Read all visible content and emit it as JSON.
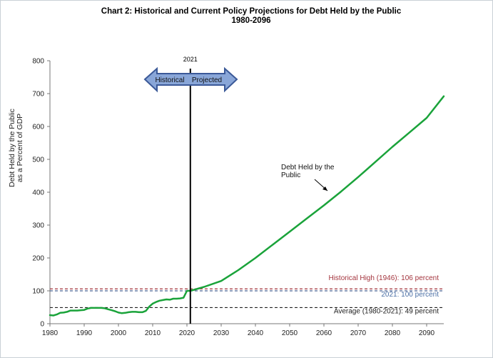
{
  "chart_data": {
    "type": "line",
    "title": "Chart 2:  Historical and Current Policy Projections for Debt Held by the Public",
    "subtitle": "1980-2096",
    "ylabel_line1": "Debt Held by the Public",
    "ylabel_line2": "as a Percent of GDP",
    "xlim": [
      1980,
      2095
    ],
    "ylim": [
      0,
      800
    ],
    "x_ticks": [
      "1980",
      "1990",
      "2000",
      "2010",
      "2020",
      "2030",
      "2040",
      "2050",
      "2060",
      "2070",
      "2080",
      "2090"
    ],
    "y_ticks": [
      "0",
      "100",
      "200",
      "300",
      "400",
      "500",
      "600",
      "700",
      "800"
    ],
    "grid": false,
    "series": [
      {
        "name": "Debt Held by the Public",
        "color": "#1aa33a",
        "x": [
          1980,
          1981,
          1982,
          1983,
          1984,
          1985,
          1986,
          1987,
          1988,
          1989,
          1990,
          1991,
          1992,
          1993,
          1994,
          1995,
          1996,
          1997,
          1998,
          1999,
          2000,
          2001,
          2002,
          2003,
          2004,
          2005,
          2006,
          2007,
          2008,
          2009,
          2010,
          2011,
          2012,
          2013,
          2014,
          2015,
          2016,
          2017,
          2018,
          2019,
          2020,
          2021,
          2025,
          2030,
          2035,
          2040,
          2045,
          2050,
          2055,
          2060,
          2065,
          2070,
          2075,
          2080,
          2085,
          2090,
          2095
        ],
        "y": [
          26,
          25,
          28,
          33,
          34,
          36,
          40,
          40,
          40,
          41,
          42,
          46,
          48,
          48,
          48,
          48,
          47,
          44,
          41,
          38,
          34,
          32,
          33,
          35,
          36,
          36,
          35,
          35,
          39,
          52,
          61,
          66,
          70,
          72,
          74,
          73,
          76,
          76,
          77,
          79,
          100,
          100,
          112,
          130,
          163,
          200,
          240,
          280,
          320,
          360,
          402,
          446,
          492,
          538,
          582,
          626,
          692
        ]
      }
    ],
    "reference_lines": [
      {
        "label": "Historical High (1946): 106 percent",
        "value": 106,
        "color": "#a3343d",
        "text_color": "#a3343d"
      },
      {
        "label": "2021: 100 percent",
        "value": 100,
        "color": "#4a5f8f",
        "text_color": "#4a6fa5"
      },
      {
        "label": "Average (1980-2021): 49 percent",
        "value": 49,
        "color": "#222222",
        "text_color": "#222222"
      }
    ],
    "divider": {
      "year": 2021,
      "label": "2021"
    },
    "arrow_labels": {
      "left": "Historical",
      "right": "Projected",
      "fill": "#89a6d8",
      "stroke": "#3b5998"
    },
    "annotation": {
      "line1": "Debt Held by the",
      "line2": "Public",
      "x": 2060,
      "y": 400
    }
  }
}
